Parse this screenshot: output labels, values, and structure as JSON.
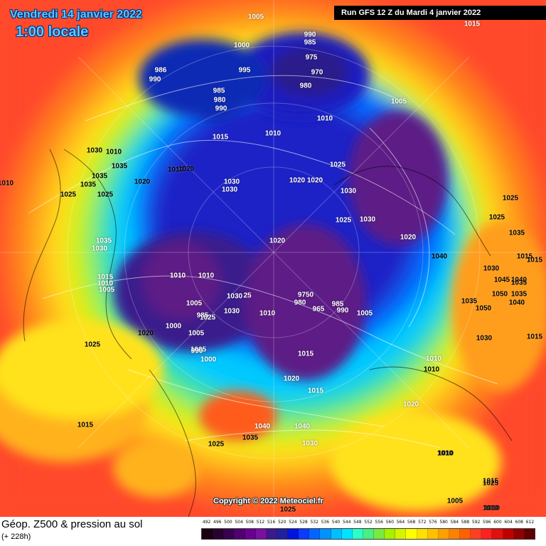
{
  "header": {
    "valid_date": "Vendredi 14 janvier 2022",
    "valid_local": "1:00 locale",
    "run_info": "Run GFS 12 Z du Mardi 4 janvier 2022"
  },
  "footer": {
    "copyright": "Copyright © 2022 Meteociel.fr",
    "title": "Géop. Z500 & pression au sol",
    "subtitle": "(+ 228h)"
  },
  "scale": {
    "values": [
      "492",
      "496",
      "500",
      "504",
      "508",
      "512",
      "516",
      "520",
      "524",
      "528",
      "532",
      "536",
      "540",
      "544",
      "548",
      "552",
      "556",
      "560",
      "564",
      "568",
      "572",
      "576",
      "580",
      "584",
      "588",
      "592",
      "596",
      "600",
      "604",
      "608",
      "612"
    ],
    "colors": [
      "#1a0010",
      "#2a0030",
      "#3a0050",
      "#500070",
      "#6a0090",
      "#7a10a0",
      "#3a1a8c",
      "#2020a0",
      "#0014e0",
      "#0a3cff",
      "#0066ff",
      "#0093ff",
      "#00c0ff",
      "#00e5ff",
      "#2affc8",
      "#4af080",
      "#7aea40",
      "#a6f000",
      "#d6f400",
      "#ffff00",
      "#ffe000",
      "#ffc000",
      "#ffa000",
      "#ff8000",
      "#ff6000",
      "#ff4020",
      "#ff2020",
      "#e01010",
      "#c00000",
      "#900000",
      "#600000"
    ]
  },
  "pressure_labels": [
    {
      "text": "1005"
    },
    {
      "text": "1015"
    },
    {
      "text": "990"
    },
    {
      "text": "985"
    },
    {
      "text": "975"
    },
    {
      "text": "970"
    },
    {
      "text": "980"
    },
    {
      "text": "1000"
    },
    {
      "text": "995"
    },
    {
      "text": "986"
    },
    {
      "text": "990"
    },
    {
      "text": "985"
    },
    {
      "text": "980"
    },
    {
      "text": "990"
    },
    {
      "text": "1005"
    },
    {
      "text": "1010"
    },
    {
      "text": "1015"
    },
    {
      "text": "1010"
    },
    {
      "text": "1030"
    },
    {
      "text": "1010"
    },
    {
      "text": "1035"
    },
    {
      "text": "1010"
    },
    {
      "text": "1020"
    },
    {
      "text": "1025"
    },
    {
      "text": "1035"
    },
    {
      "text": "1025"
    },
    {
      "text": "1020"
    },
    {
      "text": "1035"
    },
    {
      "text": "1030"
    },
    {
      "text": "1025"
    },
    {
      "text": "1020"
    },
    {
      "text": "1020"
    },
    {
      "text": "1030"
    },
    {
      "text": "1030"
    },
    {
      "text": "1025"
    },
    {
      "text": "1020"
    },
    {
      "text": "1030"
    },
    {
      "text": "1035"
    },
    {
      "text": "1030"
    },
    {
      "text": "1015"
    },
    {
      "text": "1010"
    },
    {
      "text": "1005"
    },
    {
      "text": "1010"
    },
    {
      "text": "1010"
    },
    {
      "text": "1020"
    },
    {
      "text": "1005"
    },
    {
      "text": "1000"
    },
    {
      "text": "1025"
    },
    {
      "text": "985"
    },
    {
      "text": "1005"
    },
    {
      "text": "1030"
    },
    {
      "text": "1030"
    },
    {
      "text": "25"
    },
    {
      "text": "1010"
    },
    {
      "text": "9750"
    },
    {
      "text": "980"
    },
    {
      "text": "965"
    },
    {
      "text": "985"
    },
    {
      "text": "990"
    },
    {
      "text": "1005"
    },
    {
      "text": "1020"
    },
    {
      "text": "1005"
    },
    {
      "text": "990"
    },
    {
      "text": "1000"
    },
    {
      "text": "1025"
    },
    {
      "text": "1020"
    },
    {
      "text": "1015"
    },
    {
      "text": "1025"
    },
    {
      "text": "1025"
    },
    {
      "text": "1035"
    },
    {
      "text": "1015"
    },
    {
      "text": "1040"
    },
    {
      "text": "1030"
    },
    {
      "text": "1045"
    },
    {
      "text": "1040"
    },
    {
      "text": "1050"
    },
    {
      "text": "1035"
    },
    {
      "text": "1050"
    },
    {
      "text": "1030"
    },
    {
      "text": "1015"
    },
    {
      "text": "1010"
    },
    {
      "text": "1010"
    },
    {
      "text": "1020"
    },
    {
      "text": "1040"
    },
    {
      "text": "1040"
    },
    {
      "text": "1035"
    },
    {
      "text": "1030"
    },
    {
      "text": "1010"
    },
    {
      "text": "1015"
    },
    {
      "text": "1025"
    },
    {
      "text": "1015"
    },
    {
      "text": "1005"
    },
    {
      "text": "1010"
    },
    {
      "text": "1025"
    },
    {
      "text": "1040"
    },
    {
      "text": "1035"
    },
    {
      "text": "1035"
    },
    {
      "text": "1010"
    },
    {
      "text": "1015"
    },
    {
      "text": "1015"
    },
    {
      "text": "1025"
    },
    {
      "text": "1010"
    },
    {
      "text": "1010"
    }
  ]
}
